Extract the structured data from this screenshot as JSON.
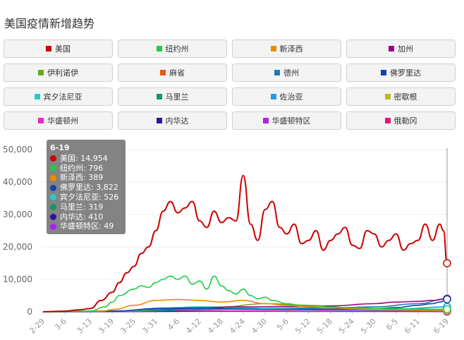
{
  "title": "美国疫情新增趋势",
  "legend": [
    {
      "name": "美国",
      "color": "#cc0000"
    },
    {
      "name": "纽约州",
      "color": "#22cc44"
    },
    {
      "name": "新泽西",
      "color": "#ee8a00"
    },
    {
      "name": "加州",
      "color": "#990088"
    },
    {
      "name": "伊利诺伊",
      "color": "#66aa22"
    },
    {
      "name": "麻省",
      "color": "#ee5511"
    },
    {
      "name": "德州",
      "color": "#1e7ab8"
    },
    {
      "name": "佛罗里达",
      "color": "#1144aa"
    },
    {
      "name": "宾夕法尼亚",
      "color": "#22cccc"
    },
    {
      "name": "马里兰",
      "color": "#119966"
    },
    {
      "name": "佐治亚",
      "color": "#2299ee"
    },
    {
      "name": "密歇根",
      "color": "#bbbb22"
    },
    {
      "name": "华盛顿州",
      "color": "#ee22cc"
    },
    {
      "name": "内华达",
      "color": "#331199"
    },
    {
      "name": "华盛顿特区",
      "color": "#aa22ee"
    },
    {
      "name": "俄勒冈",
      "color": "#ee1177"
    }
  ],
  "tooltip": {
    "date": "6-19",
    "rows": [
      {
        "label": "美国: 14,954",
        "color": "#cc0000"
      },
      {
        "label": "纽约州: 796",
        "color": "#22cc44"
      },
      {
        "label": "新泽西: 389",
        "color": "#ee8a00"
      },
      {
        "label": "佛罗里达: 3,822",
        "color": "#1144aa"
      },
      {
        "label": "宾夕法尼亚: 526",
        "color": "#22cccc"
      },
      {
        "label": "马里兰: 319",
        "color": "#119966"
      },
      {
        "label": "内华达: 410",
        "color": "#331199"
      },
      {
        "label": "华盛顿特区: 49",
        "color": "#aa22ee"
      }
    ]
  },
  "chart_data": {
    "type": "line",
    "y_ticks": [
      "0",
      "10,000",
      "20,000",
      "30,000",
      "40,000",
      "50,000"
    ],
    "ylim": [
      0,
      50000
    ],
    "x_ticks": [
      "2-29",
      "3-6",
      "3-13",
      "3-19",
      "3-25",
      "3-31",
      "4-6",
      "4-12",
      "4-18",
      "4-24",
      "4-30",
      "5-6",
      "5-12",
      "5-18",
      "5-24",
      "5-30",
      "6-5",
      "6-11",
      "6-19"
    ],
    "xlim": [
      "2-29",
      "6-19"
    ],
    "series": [
      {
        "name": "美国",
        "color": "#cc0000",
        "points": [
          [
            "2-29",
            0
          ],
          [
            "3-6",
            200
          ],
          [
            "3-10",
            600
          ],
          [
            "3-13",
            1000
          ],
          [
            "3-16",
            3500
          ],
          [
            "3-19",
            6000
          ],
          [
            "3-21",
            9000
          ],
          [
            "3-23",
            12000
          ],
          [
            "3-25",
            14000
          ],
          [
            "3-27",
            18000
          ],
          [
            "3-29",
            20000
          ],
          [
            "3-31",
            25000
          ],
          [
            "4-2",
            31000
          ],
          [
            "4-4",
            34000
          ],
          [
            "4-6",
            30500
          ],
          [
            "4-8",
            32000
          ],
          [
            "4-10",
            34000
          ],
          [
            "4-12",
            28000
          ],
          [
            "4-14",
            26000
          ],
          [
            "4-16",
            31000
          ],
          [
            "4-18",
            27500
          ],
          [
            "4-20",
            29000
          ],
          [
            "4-22",
            28000
          ],
          [
            "4-24",
            42000
          ],
          [
            "4-26",
            27000
          ],
          [
            "4-28",
            22000
          ],
          [
            "4-30",
            31500
          ],
          [
            "5-2",
            34000
          ],
          [
            "5-4",
            26000
          ],
          [
            "5-6",
            24000
          ],
          [
            "5-8",
            27000
          ],
          [
            "5-10",
            21000
          ],
          [
            "5-12",
            22000
          ],
          [
            "5-14",
            25000
          ],
          [
            "5-16",
            19000
          ],
          [
            "5-18",
            22000
          ],
          [
            "5-20",
            24000
          ],
          [
            "5-22",
            26000
          ],
          [
            "5-24",
            20500
          ],
          [
            "5-26",
            19500
          ],
          [
            "5-28",
            25000
          ],
          [
            "5-30",
            24000
          ],
          [
            "6-1",
            20000
          ],
          [
            "6-3",
            22000
          ],
          [
            "6-5",
            24000
          ],
          [
            "6-7",
            19000
          ],
          [
            "6-9",
            21000
          ],
          [
            "6-11",
            22000
          ],
          [
            "6-13",
            27000
          ],
          [
            "6-15",
            22000
          ],
          [
            "6-17",
            27000
          ],
          [
            "6-18",
            25000
          ],
          [
            "6-19",
            14954
          ]
        ]
      },
      {
        "name": "纽约州",
        "color": "#22cc44",
        "points": [
          [
            "2-29",
            0
          ],
          [
            "3-13",
            200
          ],
          [
            "3-17",
            1500
          ],
          [
            "3-19",
            3000
          ],
          [
            "3-21",
            5000
          ],
          [
            "3-25",
            7000
          ],
          [
            "3-27",
            8000
          ],
          [
            "3-29",
            7500
          ],
          [
            "3-31",
            9000
          ],
          [
            "4-2",
            10000
          ],
          [
            "4-4",
            11000
          ],
          [
            "4-6",
            10000
          ],
          [
            "4-8",
            11000
          ],
          [
            "4-10",
            8500
          ],
          [
            "4-12",
            9500
          ],
          [
            "4-14",
            7000
          ],
          [
            "4-16",
            11000
          ],
          [
            "4-18",
            8000
          ],
          [
            "4-20",
            6500
          ],
          [
            "4-22",
            5500
          ],
          [
            "4-24",
            7000
          ],
          [
            "4-26",
            5000
          ],
          [
            "4-28",
            4000
          ],
          [
            "4-30",
            4500
          ],
          [
            "5-2",
            3500
          ],
          [
            "5-6",
            2500
          ],
          [
            "5-10",
            2000
          ],
          [
            "5-14",
            1800
          ],
          [
            "5-18",
            1500
          ],
          [
            "5-22",
            1300
          ],
          [
            "5-26",
            1200
          ],
          [
            "5-30",
            1000
          ],
          [
            "6-3",
            1000
          ],
          [
            "6-7",
            900
          ],
          [
            "6-11",
            850
          ],
          [
            "6-15",
            800
          ],
          [
            "6-19",
            796
          ]
        ]
      },
      {
        "name": "新泽西",
        "color": "#ee8a00",
        "points": [
          [
            "2-29",
            0
          ],
          [
            "3-16",
            200
          ],
          [
            "3-20",
            800
          ],
          [
            "3-25",
            2000
          ],
          [
            "3-31",
            3500
          ],
          [
            "4-6",
            3800
          ],
          [
            "4-12",
            3500
          ],
          [
            "4-18",
            3000
          ],
          [
            "4-24",
            3500
          ],
          [
            "4-30",
            2500
          ],
          [
            "5-6",
            2000
          ],
          [
            "5-12",
            1500
          ],
          [
            "5-18",
            1200
          ],
          [
            "5-24",
            1000
          ],
          [
            "5-30",
            800
          ],
          [
            "6-5",
            600
          ],
          [
            "6-11",
            500
          ],
          [
            "6-19",
            389
          ]
        ]
      },
      {
        "name": "佛罗里达",
        "color": "#1144aa",
        "points": [
          [
            "2-29",
            0
          ],
          [
            "3-20",
            200
          ],
          [
            "3-31",
            1000
          ],
          [
            "4-12",
            1200
          ],
          [
            "4-24",
            800
          ],
          [
            "5-6",
            700
          ],
          [
            "5-18",
            800
          ],
          [
            "5-30",
            900
          ],
          [
            "6-5",
            1300
          ],
          [
            "6-11",
            2000
          ],
          [
            "6-15",
            2500
          ],
          [
            "6-17",
            3000
          ],
          [
            "6-19",
            3822
          ]
        ]
      },
      {
        "name": "加州",
        "color": "#990088",
        "points": [
          [
            "2-29",
            0
          ],
          [
            "3-20",
            200
          ],
          [
            "3-31",
            900
          ],
          [
            "4-12",
            1200
          ],
          [
            "4-24",
            1500
          ],
          [
            "5-6",
            1600
          ],
          [
            "5-18",
            1800
          ],
          [
            "5-30",
            2500
          ],
          [
            "6-5",
            3000
          ],
          [
            "6-11",
            3200
          ],
          [
            "6-15",
            3500
          ],
          [
            "6-19",
            4000
          ]
        ]
      },
      {
        "name": "宾夕法尼亚",
        "color": "#22cccc",
        "points": [
          [
            "2-29",
            0
          ],
          [
            "3-22",
            200
          ],
          [
            "4-2",
            1200
          ],
          [
            "4-12",
            1500
          ],
          [
            "4-24",
            1200
          ],
          [
            "5-6",
            800
          ],
          [
            "5-18",
            700
          ],
          [
            "5-30",
            600
          ],
          [
            "6-11",
            550
          ],
          [
            "6-19",
            526
          ]
        ]
      },
      {
        "name": "伊利诺伊",
        "color": "#66aa22",
        "points": [
          [
            "2-29",
            0
          ],
          [
            "3-24",
            300
          ],
          [
            "4-6",
            1300
          ],
          [
            "4-18",
            1500
          ],
          [
            "4-30",
            2500
          ],
          [
            "5-12",
            2000
          ],
          [
            "5-24",
            1200
          ],
          [
            "6-5",
            800
          ],
          [
            "6-19",
            700
          ]
        ]
      },
      {
        "name": "德州",
        "color": "#1e7ab8",
        "points": [
          [
            "2-29",
            0
          ],
          [
            "3-24",
            300
          ],
          [
            "4-12",
            800
          ],
          [
            "4-30",
            1000
          ],
          [
            "5-18",
            1200
          ],
          [
            "5-30",
            1500
          ],
          [
            "6-11",
            2500
          ],
          [
            "6-19",
            4000
          ]
        ]
      },
      {
        "name": "佐治亚",
        "color": "#2299ee",
        "points": [
          [
            "2-29",
            0
          ],
          [
            "3-24",
            300
          ],
          [
            "4-12",
            900
          ],
          [
            "4-30",
            800
          ],
          [
            "5-18",
            600
          ],
          [
            "6-5",
            800
          ],
          [
            "6-19",
            1500
          ]
        ]
      },
      {
        "name": "马里兰",
        "color": "#119966",
        "points": [
          [
            "2-29",
            0
          ],
          [
            "3-26",
            200
          ],
          [
            "4-12",
            700
          ],
          [
            "4-30",
            1000
          ],
          [
            "5-18",
            800
          ],
          [
            "6-5",
            500
          ],
          [
            "6-19",
            319
          ]
        ]
      },
      {
        "name": "华盛顿州",
        "color": "#ee22cc",
        "points": [
          [
            "2-29",
            0
          ],
          [
            "3-16",
            200
          ],
          [
            "3-31",
            500
          ],
          [
            "4-18",
            300
          ],
          [
            "5-12",
            200
          ],
          [
            "6-5",
            300
          ],
          [
            "6-19",
            400
          ]
        ]
      },
      {
        "name": "内华达",
        "color": "#331199",
        "points": [
          [
            "2-29",
            0
          ],
          [
            "3-25",
            100
          ],
          [
            "4-12",
            200
          ],
          [
            "5-12",
            150
          ],
          [
            "6-5",
            200
          ],
          [
            "6-19",
            410
          ]
        ]
      },
      {
        "name": "华盛顿特区",
        "color": "#aa22ee",
        "points": [
          [
            "2-29",
            0
          ],
          [
            "3-28",
            100
          ],
          [
            "4-18",
            200
          ],
          [
            "5-12",
            150
          ],
          [
            "6-5",
            80
          ],
          [
            "6-19",
            49
          ]
        ]
      }
    ]
  }
}
